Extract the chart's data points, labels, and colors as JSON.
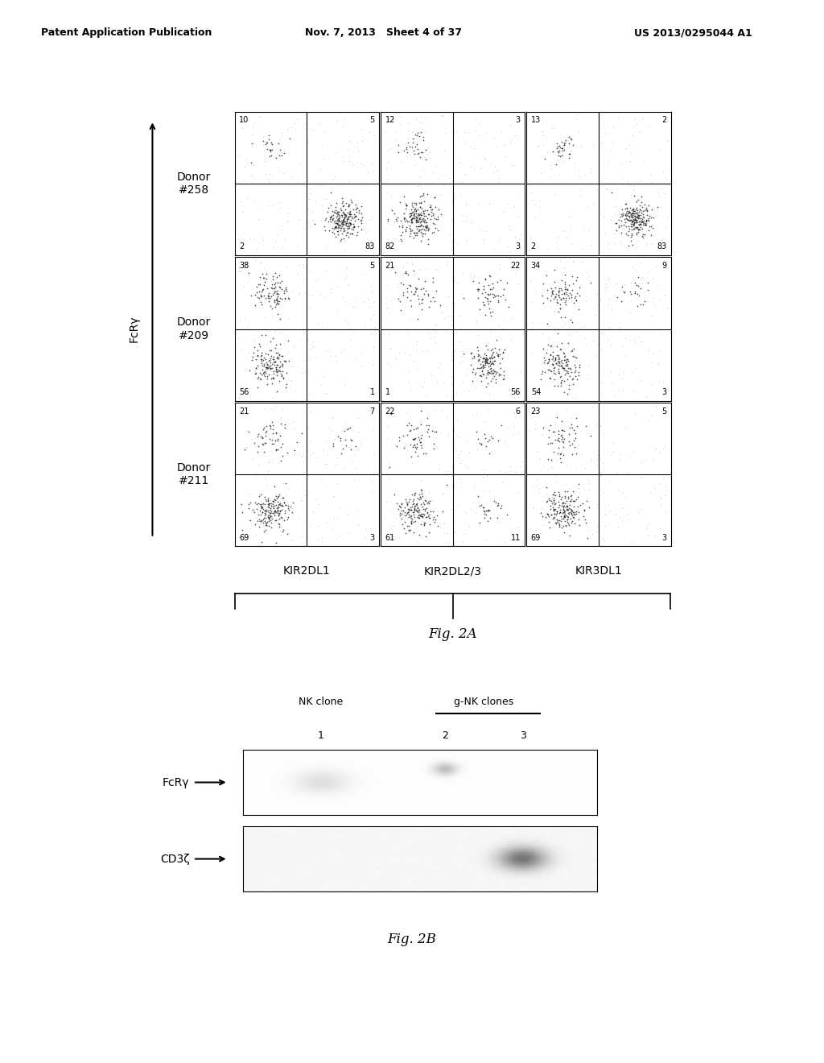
{
  "header_left": "Patent Application Publication",
  "header_mid": "Nov. 7, 2013   Sheet 4 of 37",
  "header_right": "US 2013/0295044 A1",
  "fig2a_label": "Fig. 2A",
  "fig2b_label": "Fig. 2B",
  "donors": [
    "Donor\n#258",
    "Donor\n#209",
    "Donor\n#211"
  ],
  "kir_labels": [
    "KIR2DL1",
    "KIR2DL2/3",
    "KIR3DL1"
  ],
  "fcry_label": "FcRγ",
  "grid_numbers": [
    [
      [
        10,
        5,
        2,
        83
      ],
      [
        12,
        3,
        82,
        3
      ],
      [
        13,
        2,
        2,
        83
      ]
    ],
    [
      [
        38,
        5,
        56,
        1
      ],
      [
        21,
        22,
        1,
        56
      ],
      [
        34,
        9,
        54,
        3
      ]
    ],
    [
      [
        21,
        7,
        69,
        3
      ],
      [
        22,
        6,
        61,
        11
      ],
      [
        23,
        5,
        69,
        3
      ]
    ]
  ],
  "wb_label1": "FcRγ",
  "wb_label2": "CD3ζ",
  "wb_header1": "NK clone",
  "wb_header2": "g-NK clones",
  "wb_lanes": [
    "1",
    "2",
    "3"
  ],
  "bg_color": "#ffffff",
  "header_fontsize": 9,
  "label_fontsize": 10,
  "number_fontsize": 8
}
